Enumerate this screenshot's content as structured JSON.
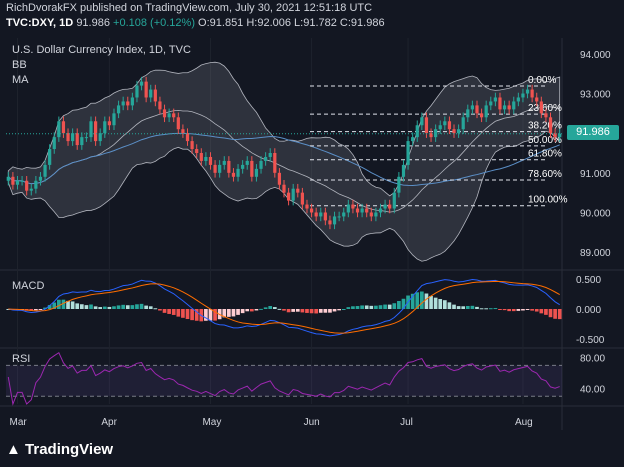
{
  "header": {
    "line1": "RichDvorakFX published on TradingView.com, July 30, 2021 12:51:18 UTC",
    "symbol": "TVC:DXY, 1D",
    "last": "91.986",
    "change": "+0.108 (+0.12%)",
    "ohlc": "O:91.851 H:92.006 L:91.782 C:91.986"
  },
  "panes": {
    "main_title": "U.S. Dollar Currency Index, 1D, TVC",
    "bb_label": "BB",
    "ma_label": "MA",
    "macd_label": "MACD",
    "rsi_label": "RSI"
  },
  "price_tag": "91.986",
  "logo_text": "TradingView",
  "colors": {
    "background": "#131722",
    "up": "#26a69a",
    "down": "#ef5350",
    "macd_line": "#2962ff",
    "signal_line": "#ff6d00",
    "rsi_line": "#9c27b0"
  },
  "chart_data": [
    {
      "type": "candlestick",
      "title": "U.S. Dollar Currency Index, 1D, TVC",
      "x_tick_labels": [
        "Mar",
        "Apr",
        "May",
        "Jun",
        "Jul",
        "Aug"
      ],
      "y_ticks": [
        89.0,
        90.0,
        91.0,
        92.0,
        93.0,
        94.0
      ],
      "ylim": [
        88.6,
        94.4
      ],
      "fib_levels": [
        {
          "label": "0.00%",
          "value": 93.19
        },
        {
          "label": "23.60%",
          "value": 92.48
        },
        {
          "label": "38.20%",
          "value": 92.04
        },
        {
          "label": "50.00%",
          "value": 91.68
        },
        {
          "label": "61.80%",
          "value": 91.33
        },
        {
          "label": "78.60%",
          "value": 90.82
        },
        {
          "label": "100.00%",
          "value": 90.17
        }
      ],
      "closes": [
        90.9,
        90.7,
        90.8,
        90.8,
        90.55,
        90.6,
        90.8,
        90.9,
        91.2,
        91.6,
        91.9,
        92.3,
        92.0,
        91.8,
        92.0,
        91.7,
        91.9,
        91.9,
        92.3,
        91.8,
        92.0,
        92.3,
        92.2,
        92.5,
        92.7,
        92.8,
        92.7,
        92.9,
        93.2,
        93.3,
        92.9,
        93.1,
        92.8,
        92.6,
        92.4,
        92.5,
        92.4,
        92.1,
        92.0,
        91.8,
        91.6,
        91.5,
        91.3,
        91.4,
        91.2,
        91.0,
        91.2,
        91.3,
        91.0,
        90.9,
        91.1,
        91.2,
        91.3,
        90.9,
        91.1,
        91.3,
        91.4,
        91.5,
        91.0,
        90.7,
        90.5,
        90.3,
        90.6,
        90.5,
        90.2,
        90.1,
        90.0,
        89.9,
        90.0,
        89.8,
        89.7,
        89.9,
        89.9,
        90.0,
        90.2,
        90.1,
        90.0,
        90.1,
        90.0,
        89.9,
        90.0,
        90.1,
        90.2,
        90.1,
        90.5,
        90.9,
        91.2,
        91.8,
        91.9,
        92.2,
        92.4,
        92.0,
        91.9,
        92.1,
        92.2,
        92.3,
        92.1,
        92.0,
        92.1,
        92.4,
        92.6,
        92.7,
        92.5,
        92.4,
        92.7,
        92.8,
        92.9,
        92.6,
        92.7,
        92.6,
        92.8,
        92.9,
        93.0,
        93.1,
        92.9,
        92.8,
        92.5,
        92.4,
        92.0,
        91.9,
        91.986
      ],
      "macd": {
        "ylim": [
          -0.62,
          0.62
        ],
        "y_ticks": [
          -0.5,
          0.0,
          0.5
        ]
      },
      "rsi": {
        "ylim": [
          20,
          90
        ],
        "y_ticks": [
          40.0,
          80.0
        ],
        "bands": [
          30,
          70
        ]
      }
    }
  ]
}
